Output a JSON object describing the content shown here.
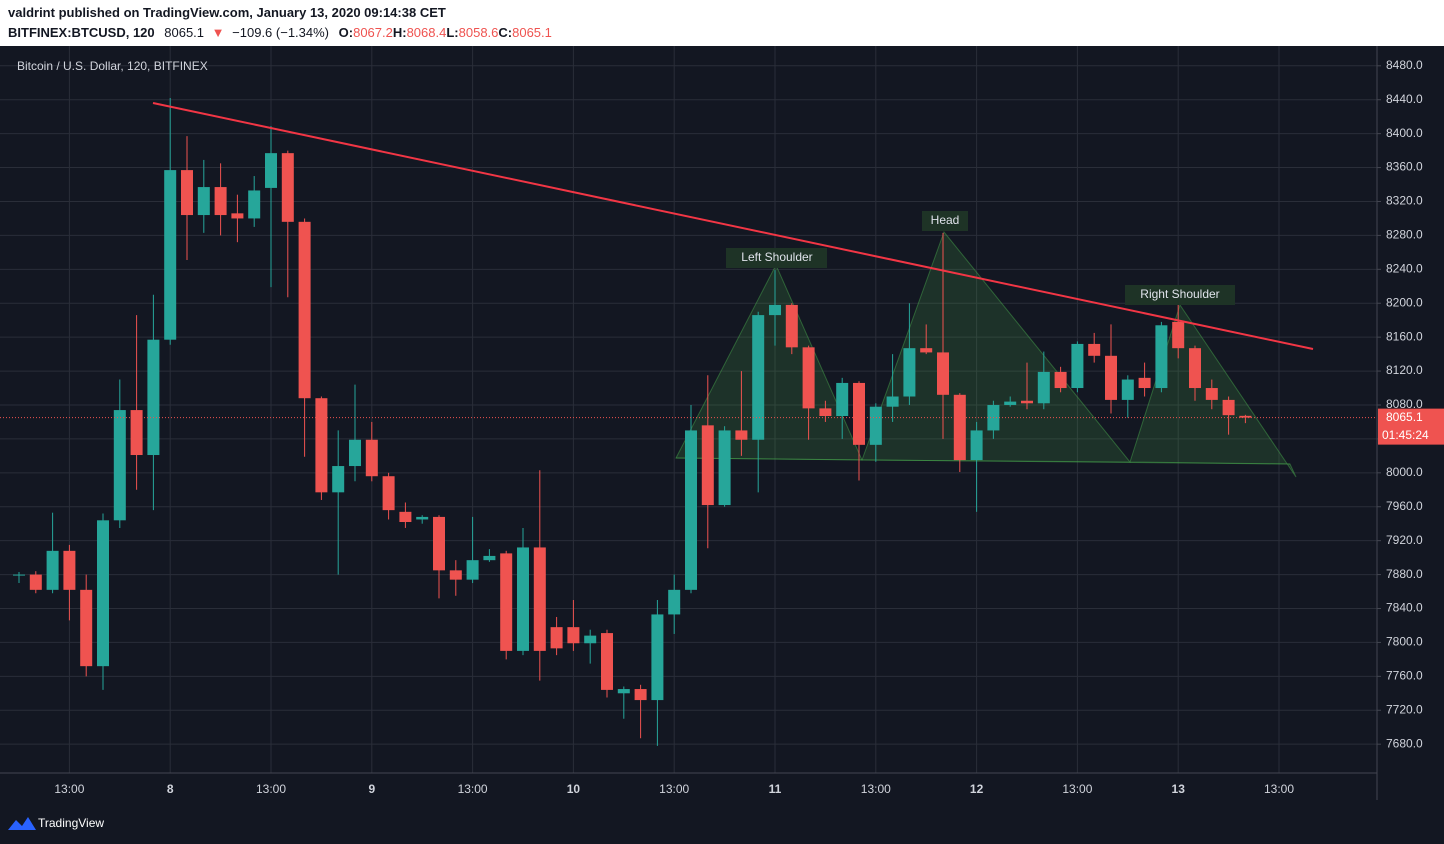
{
  "header": {
    "publisher": "valdrint published on TradingView.com, January 13, 2020 09:14:38 CET",
    "symbol": "BITFINEX:BTCUSD, 120",
    "last": "8065.1",
    "change": "−109.6 (−1.34%)",
    "ohlc": [
      {
        "label": "O:",
        "value": "8067.2"
      },
      {
        "label": "H:",
        "value": "8068.4"
      },
      {
        "label": "L:",
        "value": "8058.6"
      },
      {
        "label": "C:",
        "value": "8065.1"
      }
    ]
  },
  "chart_data": {
    "type": "candlestick",
    "title": "Bitcoin / U.S. Dollar, 120, BITFINEX",
    "categories": [
      null,
      null,
      null,
      "13:00",
      null,
      null,
      null,
      null,
      null,
      "8",
      null,
      null,
      null,
      null,
      null,
      "13:00",
      null,
      null,
      null,
      null,
      null,
      "9",
      null,
      null,
      null,
      null,
      null,
      "13:00",
      null,
      null,
      null,
      null,
      null,
      "10",
      null,
      null,
      null,
      null,
      null,
      "13:00",
      null,
      null,
      null,
      null,
      null,
      "11",
      null,
      null,
      null,
      null,
      null,
      "13:00",
      null,
      null,
      null,
      null,
      null,
      "12",
      null,
      null,
      null,
      null,
      null,
      "13:00",
      null,
      null,
      null,
      null,
      null,
      "13",
      null,
      null,
      null,
      null,
      null,
      "13:00"
    ],
    "open": [
      7880,
      7880,
      7862,
      7908,
      7862,
      7772,
      7944,
      8074,
      8021,
      8157,
      8357,
      8304,
      8337,
      8306,
      8300,
      8336,
      8377,
      8296,
      8088,
      7977,
      8008,
      8039,
      7996,
      7954,
      7945,
      7948,
      7885,
      7874,
      7897,
      7905,
      7790,
      7912,
      7818,
      7818,
      7799,
      7811,
      7740,
      7745,
      7732,
      7833,
      7862,
      8056,
      7962,
      8050,
      8039,
      8186,
      8198,
      8148,
      8076,
      8067,
      8106,
      8033,
      8078,
      8090,
      8147,
      8142,
      8092,
      8015,
      8050,
      8080,
      8085,
      8082,
      8119,
      8100,
      8152,
      8138,
      8086,
      8112,
      8100,
      8178,
      8147,
      8100,
      8086,
      8067.2,
      null,
      null
    ],
    "high": [
      7883,
      7884,
      7953,
      7915,
      7880,
      7952,
      8110,
      8186,
      8210,
      8442,
      8397,
      8369,
      8365,
      8328,
      8350,
      8409,
      8380,
      8300,
      8090,
      8050,
      8104,
      8060,
      8000,
      7965,
      7950,
      7950,
      7897,
      7948,
      7910,
      7908,
      7935,
      8003,
      7830,
      7850,
      7815,
      7815,
      7748,
      7750,
      7850,
      7880,
      8080,
      8115,
      8055,
      8120,
      8190,
      8239,
      8200,
      8150,
      8085,
      8112,
      8108,
      8082,
      8140,
      8200,
      8175,
      8283,
      8094,
      8060,
      8085,
      8090,
      8130,
      8143,
      8125,
      8155,
      8165,
      8175,
      8115,
      8130,
      8178,
      8200,
      8150,
      8110,
      8090,
      8068.4,
      null,
      null
    ],
    "low": [
      7870,
      7858,
      7858,
      7826,
      7760,
      7744,
      7935,
      7980,
      7956,
      8151,
      8251,
      8283,
      8280,
      8272,
      8290,
      8219,
      8207,
      8019,
      7968,
      7880,
      7990,
      7990,
      7945,
      7935,
      7940,
      7852,
      7855,
      7870,
      7895,
      7780,
      7785,
      7755,
      7785,
      7790,
      7775,
      7735,
      7710,
      7687,
      7678,
      7810,
      7858,
      7911,
      7960,
      8020,
      7977,
      8150,
      8140,
      8039,
      8060,
      8040,
      7991,
      8013,
      8060,
      8080,
      8140,
      8040,
      8001,
      7954,
      8040,
      8078,
      8075,
      8075,
      8095,
      8095,
      8130,
      8070,
      8065,
      8090,
      8095,
      8135,
      8085,
      8075,
      8045,
      8058.6,
      null,
      null
    ],
    "close": [
      7880,
      7862,
      7908,
      7862,
      7772,
      7944,
      8074,
      8021,
      8157,
      8357,
      8304,
      8337,
      8304,
      8300,
      8333,
      8377,
      8296,
      8088,
      7977,
      8008,
      8039,
      7996,
      7956,
      7942,
      7948,
      7885,
      7874,
      7897,
      7902,
      7790,
      7912,
      7790,
      7793,
      7799,
      7808,
      7744,
      7745,
      7732,
      7833,
      7862,
      8050,
      7962,
      8050,
      8039,
      8186,
      8198,
      8148,
      8076,
      8067,
      8106,
      8033,
      8078,
      8090,
      8147,
      8142,
      8092,
      8015,
      8050,
      8080,
      8084,
      8082,
      8119,
      8100,
      8152,
      8138,
      8086,
      8110,
      8100,
      8174,
      8147,
      8100,
      8086,
      8068,
      8065.1,
      null,
      null
    ],
    "up_color": "#26a69a",
    "down_color": "#ef5350",
    "ylim": [
      7646,
      8501
    ],
    "yticks": [
      {
        "value": 7680,
        "label": "7680.0"
      },
      {
        "value": 7720,
        "label": "7720.0"
      },
      {
        "value": 7760,
        "label": "7760.0"
      },
      {
        "value": 7800,
        "label": "7800.0"
      },
      {
        "value": 7840,
        "label": "7840.0"
      },
      {
        "value": 7880,
        "label": "7880.0"
      },
      {
        "value": 7920,
        "label": "7920.0"
      },
      {
        "value": 7960,
        "label": "7960.0"
      },
      {
        "value": 8000,
        "label": "8000.0"
      },
      {
        "value": 8040,
        "label": "8040.0"
      },
      {
        "value": 8080,
        "label": "8080.0"
      },
      {
        "value": 8120,
        "label": "8120.0"
      },
      {
        "value": 8160,
        "label": "8160.0"
      },
      {
        "value": 8200,
        "label": "8200.0"
      },
      {
        "value": 8240,
        "label": "8240.0"
      },
      {
        "value": 8280,
        "label": "8280.0"
      },
      {
        "value": 8320,
        "label": "8320.0"
      },
      {
        "value": 8360,
        "label": "8360.0"
      },
      {
        "value": 8400,
        "label": "8400.0"
      },
      {
        "value": 8440,
        "label": "8440.0"
      },
      {
        "value": 8480,
        "label": "8480.0"
      }
    ],
    "grid": true,
    "price_label": "8065.1",
    "countdown": "01:45:24",
    "annotations": [
      "Left Shoulder",
      "Head",
      "Right Shoulder"
    ]
  },
  "footer": {
    "brand": "TradingView"
  }
}
